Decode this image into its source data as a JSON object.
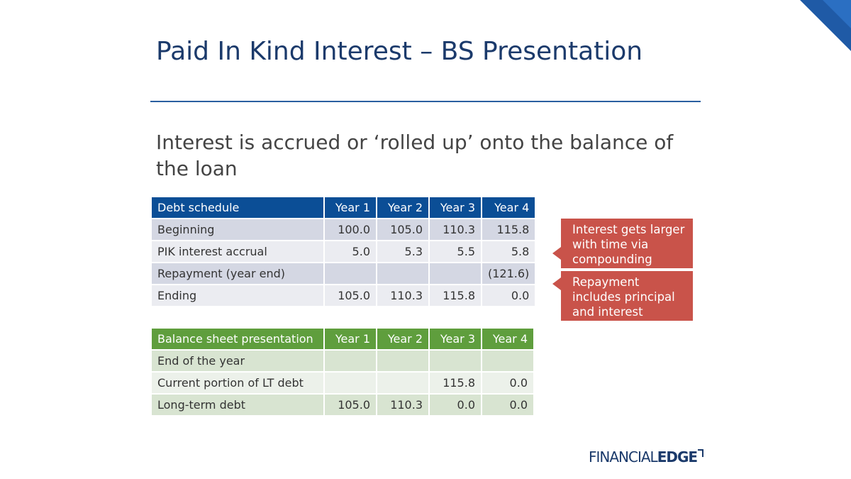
{
  "title": "Paid In Kind Interest – BS Presentation",
  "subtitle": "Interest is accrued or ‘rolled up’ onto the balance of the loan",
  "debt_table": {
    "header": [
      "Debt schedule",
      "Year 1",
      "Year 2",
      "Year 3",
      "Year 4"
    ],
    "rows": [
      [
        "Beginning",
        "100.0",
        "105.0",
        "110.3",
        "115.8"
      ],
      [
        "PIK interest accrual",
        "5.0",
        "5.3",
        "5.5",
        "5.8"
      ],
      [
        "Repayment (year end)",
        null,
        null,
        null,
        "(121.6)"
      ],
      [
        "Ending",
        "105.0",
        "110.3",
        "115.8",
        "0.0"
      ]
    ]
  },
  "balance_table": {
    "header": [
      "Balance sheet presentation",
      "Year 1",
      "Year 2",
      "Year 3",
      "Year 4"
    ],
    "rows": [
      [
        "End of the year",
        null,
        null,
        null,
        null
      ],
      [
        "Current portion of LT debt",
        null,
        null,
        "115.8",
        "0.0"
      ],
      [
        "Long-term debt",
        "105.0",
        "110.3",
        "0.0",
        "0.0"
      ]
    ]
  },
  "callouts": [
    "Interest gets larger with time via compounding",
    "Repayment includes principal and interest"
  ],
  "logo": {
    "part1": "FINANCIAL",
    "part2": "EDGE"
  }
}
